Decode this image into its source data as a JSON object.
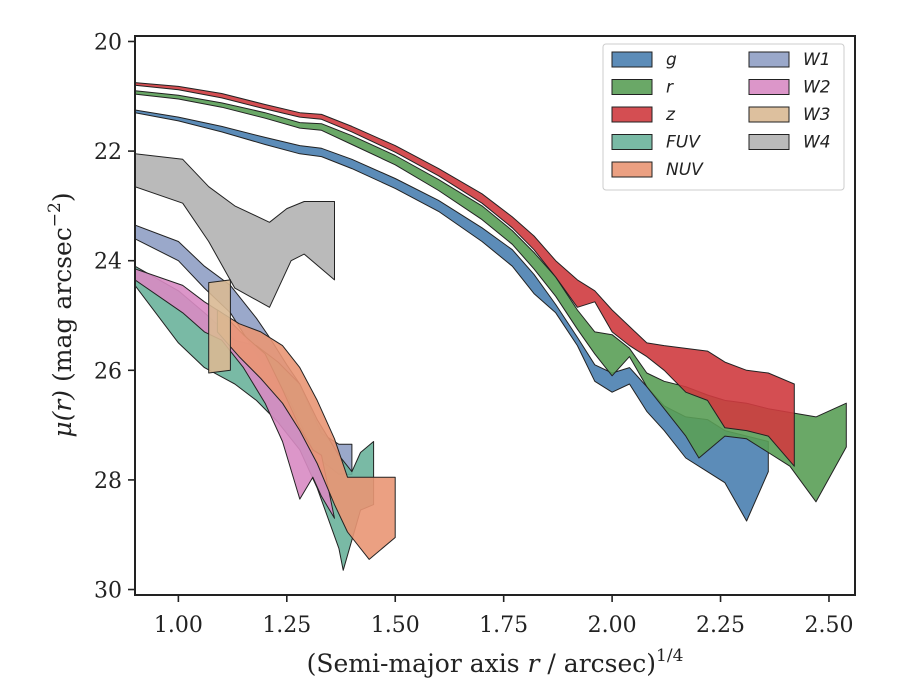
{
  "chart_data": {
    "type": "area",
    "xlabel": "(Semi-major axis r / arcsec)^{1/4}",
    "xlabel_parts": {
      "pre": "(Semi-major axis ",
      "var": "r",
      "post": " / arcsec)",
      "sup": "1/4"
    },
    "ylabel": "μ(r) (mag arcsec^{-2})",
    "ylabel_parts": {
      "var": "μ(r)",
      "unit": " (mag arcsec",
      "sup": "−2",
      "close": ")"
    },
    "xlim": [
      0.9,
      2.56
    ],
    "ylim": [
      30.1,
      19.9
    ],
    "y_inverted": true,
    "xticks": [
      1.0,
      1.25,
      1.5,
      1.75,
      2.0,
      2.25,
      2.5
    ],
    "xtick_labels": [
      "1.00",
      "1.25",
      "1.50",
      "1.75",
      "2.00",
      "2.25",
      "2.50"
    ],
    "yticks": [
      20,
      22,
      24,
      26,
      28,
      30
    ],
    "ytick_labels": [
      "20",
      "22",
      "24",
      "26",
      "28",
      "30"
    ],
    "legend_position": "top-right",
    "legend_columns": 2,
    "series": [
      {
        "name": "W4",
        "color": "#b2b2b2",
        "upper": [
          [
            0.9,
            22.05
          ],
          [
            1.01,
            22.15
          ],
          [
            1.07,
            22.65
          ],
          [
            1.13,
            23.0
          ],
          [
            1.21,
            23.3
          ],
          [
            1.25,
            23.05
          ],
          [
            1.29,
            22.92
          ],
          [
            1.36,
            22.92
          ]
        ],
        "lower": [
          [
            0.9,
            22.65
          ],
          [
            1.01,
            22.95
          ],
          [
            1.07,
            23.65
          ],
          [
            1.13,
            24.5
          ],
          [
            1.21,
            24.85
          ],
          [
            1.26,
            24.0
          ],
          [
            1.29,
            23.88
          ],
          [
            1.36,
            24.35
          ]
        ]
      },
      {
        "name": "W1",
        "color": "#8f9fc4",
        "upper": [
          [
            0.9,
            23.35
          ],
          [
            1.0,
            23.65
          ],
          [
            1.06,
            24.1
          ],
          [
            1.12,
            24.45
          ],
          [
            1.18,
            25.05
          ],
          [
            1.21,
            25.4
          ],
          [
            1.25,
            25.9
          ],
          [
            1.28,
            26.25
          ],
          [
            1.31,
            26.8
          ],
          [
            1.33,
            27.15
          ],
          [
            1.37,
            27.35
          ],
          [
            1.4,
            27.35
          ]
        ],
        "lower": [
          [
            0.9,
            23.6
          ],
          [
            1.0,
            24.0
          ],
          [
            1.06,
            24.5
          ],
          [
            1.12,
            24.95
          ],
          [
            1.18,
            25.7
          ],
          [
            1.21,
            26.05
          ],
          [
            1.25,
            26.45
          ],
          [
            1.28,
            26.95
          ],
          [
            1.31,
            27.45
          ],
          [
            1.33,
            27.65
          ],
          [
            1.37,
            27.9
          ],
          [
            1.4,
            27.9
          ]
        ]
      },
      {
        "name": "FUV",
        "color": "#6ab39b",
        "upper": [
          [
            0.9,
            24.1
          ],
          [
            1.0,
            24.55
          ],
          [
            1.06,
            24.95
          ],
          [
            1.13,
            25.45
          ],
          [
            1.18,
            25.55
          ],
          [
            1.23,
            25.85
          ],
          [
            1.28,
            26.25
          ],
          [
            1.32,
            26.9
          ],
          [
            1.37,
            27.55
          ],
          [
            1.4,
            27.85
          ],
          [
            1.42,
            27.5
          ],
          [
            1.45,
            27.3
          ],
          [
            1.45,
            27.95
          ]
        ],
        "lower": [
          [
            0.9,
            24.45
          ],
          [
            1.0,
            25.5
          ],
          [
            1.06,
            25.95
          ],
          [
            1.13,
            26.25
          ],
          [
            1.18,
            26.55
          ],
          [
            1.23,
            26.95
          ],
          [
            1.28,
            27.45
          ],
          [
            1.32,
            28.15
          ],
          [
            1.37,
            29.25
          ],
          [
            1.38,
            29.65
          ],
          [
            1.42,
            28.55
          ],
          [
            1.45,
            28.45
          ]
        ]
      },
      {
        "name": "W2",
        "color": "#d88bc3",
        "upper": [
          [
            0.9,
            24.15
          ],
          [
            1.01,
            24.45
          ],
          [
            1.06,
            24.75
          ],
          [
            1.1,
            24.95
          ],
          [
            1.15,
            25.35
          ],
          [
            1.2,
            25.7
          ],
          [
            1.24,
            26.35
          ],
          [
            1.28,
            27.05
          ],
          [
            1.31,
            27.45
          ],
          [
            1.33,
            27.55
          ]
        ],
        "lower": [
          [
            0.9,
            24.35
          ],
          [
            1.01,
            24.95
          ],
          [
            1.06,
            25.3
          ],
          [
            1.1,
            25.45
          ],
          [
            1.15,
            25.95
          ],
          [
            1.2,
            26.6
          ],
          [
            1.24,
            27.3
          ],
          [
            1.28,
            28.35
          ],
          [
            1.31,
            27.95
          ],
          [
            1.33,
            28.3
          ],
          [
            1.36,
            28.7
          ]
        ]
      },
      {
        "name": "NUV",
        "color": "#e99674",
        "upper": [
          [
            1.09,
            24.9
          ],
          [
            1.14,
            25.15
          ],
          [
            1.19,
            25.3
          ],
          [
            1.24,
            25.55
          ],
          [
            1.28,
            25.95
          ],
          [
            1.32,
            26.55
          ],
          [
            1.36,
            27.25
          ],
          [
            1.39,
            27.95
          ],
          [
            1.46,
            27.95
          ],
          [
            1.5,
            27.95
          ]
        ],
        "lower": [
          [
            1.09,
            25.3
          ],
          [
            1.14,
            25.75
          ],
          [
            1.19,
            26.15
          ],
          [
            1.24,
            26.6
          ],
          [
            1.28,
            27.1
          ],
          [
            1.32,
            27.7
          ],
          [
            1.36,
            28.45
          ],
          [
            1.39,
            28.95
          ],
          [
            1.44,
            29.45
          ],
          [
            1.5,
            29.05
          ]
        ]
      },
      {
        "name": "W3",
        "color": "#d9b993",
        "upper": [
          [
            1.07,
            24.4
          ],
          [
            1.12,
            24.35
          ]
        ],
        "lower": [
          [
            1.07,
            26.05
          ],
          [
            1.12,
            26.0
          ]
        ]
      },
      {
        "name": "g",
        "color": "#4a7fb0",
        "upper": [
          [
            0.9,
            21.25
          ],
          [
            1.0,
            21.38
          ],
          [
            1.1,
            21.55
          ],
          [
            1.2,
            21.75
          ],
          [
            1.28,
            21.9
          ],
          [
            1.33,
            21.95
          ],
          [
            1.4,
            22.15
          ],
          [
            1.5,
            22.5
          ],
          [
            1.6,
            22.9
          ],
          [
            1.7,
            23.4
          ],
          [
            1.77,
            23.8
          ],
          [
            1.82,
            24.25
          ],
          [
            1.87,
            24.8
          ],
          [
            1.92,
            25.4
          ],
          [
            1.96,
            25.9
          ],
          [
            2.0,
            26.05
          ],
          [
            2.04,
            25.95
          ],
          [
            2.08,
            26.3
          ],
          [
            2.12,
            26.65
          ],
          [
            2.17,
            26.85
          ],
          [
            2.22,
            26.9
          ],
          [
            2.26,
            27.1
          ],
          [
            2.36,
            27.3
          ]
        ],
        "lower": [
          [
            0.9,
            21.3
          ],
          [
            1.0,
            21.45
          ],
          [
            1.1,
            21.65
          ],
          [
            1.2,
            21.88
          ],
          [
            1.28,
            22.05
          ],
          [
            1.33,
            22.1
          ],
          [
            1.4,
            22.32
          ],
          [
            1.5,
            22.68
          ],
          [
            1.6,
            23.1
          ],
          [
            1.7,
            23.65
          ],
          [
            1.77,
            24.1
          ],
          [
            1.82,
            24.6
          ],
          [
            1.87,
            24.95
          ],
          [
            1.92,
            25.55
          ],
          [
            1.96,
            26.2
          ],
          [
            2.0,
            26.4
          ],
          [
            2.04,
            26.25
          ],
          [
            2.08,
            26.75
          ],
          [
            2.12,
            27.1
          ],
          [
            2.17,
            27.6
          ],
          [
            2.22,
            27.85
          ],
          [
            2.26,
            28.05
          ],
          [
            2.31,
            28.75
          ],
          [
            2.36,
            27.85
          ]
        ]
      },
      {
        "name": "r",
        "color": "#5a9e57",
        "upper": [
          [
            0.9,
            20.9
          ],
          [
            1.0,
            20.98
          ],
          [
            1.1,
            21.12
          ],
          [
            1.2,
            21.3
          ],
          [
            1.28,
            21.48
          ],
          [
            1.33,
            21.5
          ],
          [
            1.4,
            21.72
          ],
          [
            1.5,
            22.08
          ],
          [
            1.6,
            22.52
          ],
          [
            1.7,
            23.0
          ],
          [
            1.77,
            23.45
          ],
          [
            1.82,
            23.85
          ],
          [
            1.87,
            24.3
          ],
          [
            1.92,
            24.9
          ],
          [
            1.96,
            25.3
          ],
          [
            2.0,
            25.35
          ],
          [
            2.04,
            25.6
          ],
          [
            2.08,
            26.05
          ],
          [
            2.12,
            26.2
          ],
          [
            2.17,
            26.3
          ],
          [
            2.22,
            26.45
          ],
          [
            2.26,
            26.55
          ],
          [
            2.31,
            26.6
          ],
          [
            2.36,
            26.7
          ],
          [
            2.47,
            26.85
          ],
          [
            2.54,
            26.6
          ]
        ],
        "lower": [
          [
            0.9,
            20.96
          ],
          [
            1.0,
            21.05
          ],
          [
            1.1,
            21.2
          ],
          [
            1.2,
            21.4
          ],
          [
            1.28,
            21.58
          ],
          [
            1.33,
            21.62
          ],
          [
            1.4,
            21.88
          ],
          [
            1.5,
            22.25
          ],
          [
            1.6,
            22.72
          ],
          [
            1.7,
            23.25
          ],
          [
            1.77,
            23.7
          ],
          [
            1.82,
            24.15
          ],
          [
            1.87,
            24.65
          ],
          [
            1.92,
            25.25
          ],
          [
            1.96,
            25.7
          ],
          [
            2.0,
            26.1
          ],
          [
            2.04,
            25.75
          ],
          [
            2.08,
            26.3
          ],
          [
            2.12,
            26.7
          ],
          [
            2.17,
            27.2
          ],
          [
            2.2,
            27.6
          ],
          [
            2.26,
            27.2
          ],
          [
            2.31,
            27.25
          ],
          [
            2.36,
            27.5
          ],
          [
            2.41,
            27.75
          ],
          [
            2.47,
            28.4
          ],
          [
            2.54,
            27.4
          ]
        ]
      },
      {
        "name": "z",
        "color": "#cf3b3f",
        "upper": [
          [
            0.9,
            20.75
          ],
          [
            1.0,
            20.82
          ],
          [
            1.1,
            20.95
          ],
          [
            1.2,
            21.15
          ],
          [
            1.28,
            21.3
          ],
          [
            1.33,
            21.33
          ],
          [
            1.4,
            21.55
          ],
          [
            1.5,
            21.9
          ],
          [
            1.6,
            22.32
          ],
          [
            1.7,
            22.78
          ],
          [
            1.77,
            23.2
          ],
          [
            1.82,
            23.55
          ],
          [
            1.87,
            24.0
          ],
          [
            1.92,
            24.35
          ],
          [
            1.96,
            24.55
          ],
          [
            2.0,
            24.9
          ],
          [
            2.04,
            25.2
          ],
          [
            2.08,
            25.5
          ],
          [
            2.12,
            25.55
          ],
          [
            2.17,
            25.6
          ],
          [
            2.22,
            25.65
          ],
          [
            2.26,
            25.85
          ],
          [
            2.31,
            26.0
          ],
          [
            2.36,
            26.05
          ],
          [
            2.42,
            26.25
          ]
        ],
        "lower": [
          [
            0.9,
            20.8
          ],
          [
            1.0,
            20.88
          ],
          [
            1.1,
            21.03
          ],
          [
            1.2,
            21.23
          ],
          [
            1.28,
            21.38
          ],
          [
            1.33,
            21.42
          ],
          [
            1.4,
            21.65
          ],
          [
            1.5,
            22.02
          ],
          [
            1.6,
            22.45
          ],
          [
            1.7,
            22.95
          ],
          [
            1.77,
            23.4
          ],
          [
            1.82,
            23.8
          ],
          [
            1.87,
            24.3
          ],
          [
            1.92,
            24.85
          ],
          [
            1.96,
            24.75
          ],
          [
            2.0,
            25.3
          ],
          [
            2.04,
            25.55
          ],
          [
            2.08,
            25.75
          ],
          [
            2.12,
            26.0
          ],
          [
            2.17,
            26.4
          ],
          [
            2.22,
            26.55
          ],
          [
            2.26,
            27.05
          ],
          [
            2.31,
            27.1
          ],
          [
            2.36,
            27.2
          ],
          [
            2.42,
            27.75
          ]
        ]
      }
    ],
    "legend": [
      {
        "label": "g",
        "color": "#4a7fb0"
      },
      {
        "label": "r",
        "color": "#5a9e57"
      },
      {
        "label": "z",
        "color": "#cf3b3f"
      },
      {
        "label": "FUV",
        "color": "#6ab39b"
      },
      {
        "label": "NUV",
        "color": "#e99674"
      },
      {
        "label": "W1",
        "color": "#8f9fc4"
      },
      {
        "label": "W2",
        "color": "#d88bc3"
      },
      {
        "label": "W3",
        "color": "#d9b993"
      },
      {
        "label": "W4",
        "color": "#b2b2b2"
      }
    ]
  }
}
